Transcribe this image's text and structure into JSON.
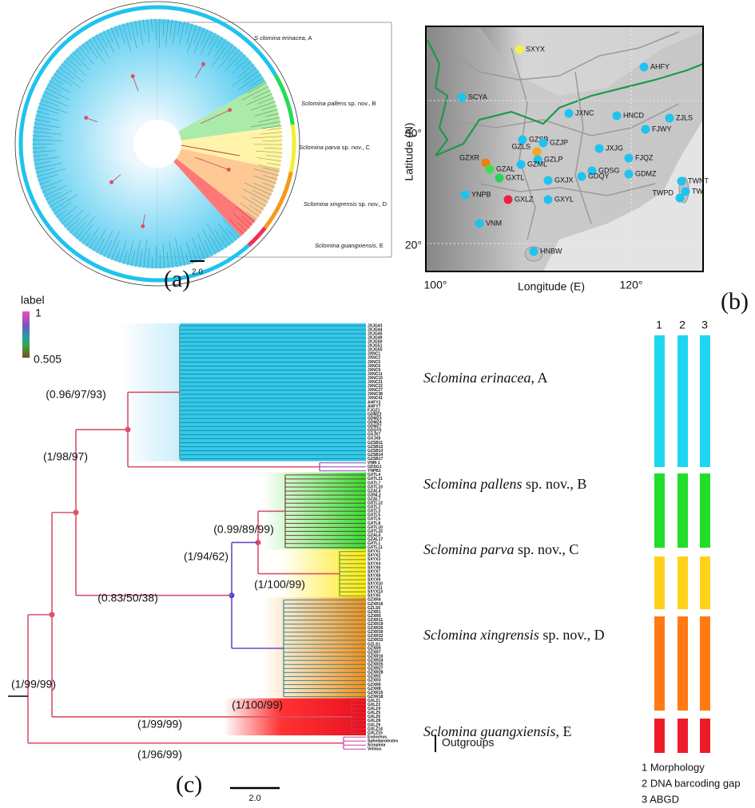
{
  "panel_a": {
    "label": "(a)",
    "scale": "2.0",
    "clades": [
      {
        "name": "S clomina erinacea",
        "suffix": ", A"
      },
      {
        "name": "Sclomina pallens",
        "suffix": " sp. nov., B"
      },
      {
        "name": "Sclomina parva",
        "suffix": " sp. nov., C"
      },
      {
        "name": "Sclomina xingrensis",
        "suffix": " sp. nov., D"
      },
      {
        "name": "Sclomina guangxiensis",
        "suffix": ", E"
      }
    ]
  },
  "panel_b": {
    "label": "(b)",
    "x_axis_label": "Longitude (E)",
    "y_axis_label": "Latitude (N)",
    "x_ticks": [
      "100°",
      "120°"
    ],
    "y_ticks": [
      "30°",
      "20°"
    ],
    "sites": [
      {
        "name": "SXYX",
        "color": "#f4f04a"
      },
      {
        "name": "AHFY",
        "color": "#1ec3ef"
      },
      {
        "name": "SCYA",
        "color": "#1ec3ef"
      },
      {
        "name": "JXNC",
        "color": "#1ec3ef"
      },
      {
        "name": "HNCD",
        "color": "#1ec3ef"
      },
      {
        "name": "ZJLS",
        "color": "#1ec3ef"
      },
      {
        "name": "FJWY",
        "color": "#1ec3ef"
      },
      {
        "name": "GZSB",
        "color": "#1ec3ef"
      },
      {
        "name": "GZJP",
        "color": "#1ec3ef"
      },
      {
        "name": "GZLS",
        "color": "#f5a623"
      },
      {
        "name": "GZLP",
        "color": "#1ec3ef"
      },
      {
        "name": "JXJG",
        "color": "#1ec3ef"
      },
      {
        "name": "GZXR",
        "color": "#f07c12"
      },
      {
        "name": "FJQZ",
        "color": "#1ec3ef"
      },
      {
        "name": "GZAL",
        "color": "#3fe04a"
      },
      {
        "name": "GZML",
        "color": "#1ec3ef"
      },
      {
        "name": "GXTL",
        "color": "#2bd058"
      },
      {
        "name": "GXJX",
        "color": "#1ec3ef"
      },
      {
        "name": "GDSG",
        "color": "#1ec3ef"
      },
      {
        "name": "GDQY",
        "color": "#1ec3ef"
      },
      {
        "name": "GDMZ",
        "color": "#1ec3ef"
      },
      {
        "name": "TWNT",
        "color": "#1ec3ef"
      },
      {
        "name": "TW",
        "color": "#1ec3ef"
      },
      {
        "name": "TWPD",
        "color": "#1ec3ef"
      },
      {
        "name": "YNPB",
        "color": "#1ec3ef"
      },
      {
        "name": "GXLZ",
        "color": "#f01e46"
      },
      {
        "name": "GXYL",
        "color": "#1ec3ef"
      },
      {
        "name": "VNM",
        "color": "#1ec3ef"
      },
      {
        "name": "HNBW",
        "color": "#1ec3ef"
      }
    ]
  },
  "panel_c": {
    "label": "(c)",
    "scale": "2.0",
    "legend": {
      "title": "label",
      "max": 1,
      "min": 0.505
    },
    "clades": [
      {
        "name": "Sclomina erinacea",
        "suffix": ", A"
      },
      {
        "name": "Sclomina pallens",
        "suffix": " sp. nov., B"
      },
      {
        "name": "Sclomina parva",
        "suffix": " sp. nov., C"
      },
      {
        "name": "Sclomina xingrensis",
        "suffix": " sp. nov., D"
      },
      {
        "name": "Sclomina guangxiensis",
        "suffix": ", E"
      }
    ],
    "outgroups": "Outgroups",
    "supports": [
      "(0.96/97/93)",
      "(1/98/97)",
      "(0.99/89/99)",
      "(1/94/62)",
      "(1/100/99)",
      "(0.83/50/38)",
      "(1/99/99)",
      "(1/100/99)",
      "(1/99/99)",
      "(1/96/99)"
    ],
    "tips": [
      "JXJG43",
      "JXJG44",
      "JXJG45",
      "JXJG49",
      "JXJG50",
      "JXJG51",
      "JXJG55",
      "JXNC1",
      "JXNC2",
      "JXNC5",
      "JXNC6",
      "JXNC9",
      "JXNC11",
      "JXNC15",
      "JXNC21",
      "JXNC22",
      "JXNC27",
      "JXNC38",
      "JXNC41",
      "AHFY2",
      "AHFY7",
      "FJQZ1",
      "GDMZ2",
      "GDMZ3",
      "GDMZ4",
      "GDMZ7",
      "GDQY5",
      "GXJX7",
      "GXJX8",
      "GZSB11",
      "GZSB12",
      "GZSB13",
      "GZSB14",
      "GZSB17",
      "VNM-1",
      "GDSG1",
      "YNPB1",
      "GXTL4",
      "GXTL21",
      "GXTL7",
      "GXTL23",
      "GZAL4",
      "GXNL2",
      "GZAL7",
      "GXTL12",
      "GXTL2",
      "GXTL3",
      "GXTL5",
      "GXTL6",
      "GXTL8",
      "GXTL10",
      "GXTL22",
      "GZAL6",
      "GZAL17",
      "GXTL1",
      "GXTL11",
      "SXYX1",
      "SXYX2",
      "SXYX3",
      "SXYX4",
      "SXYX6",
      "SXYX7",
      "SXYX8",
      "SXYX9",
      "SXYX10",
      "SXYX11",
      "SXYX13",
      "SXYX5",
      "GZXR4",
      "GZXR16",
      "GZLS6",
      "GZXR1",
      "GZXR5",
      "GZXR11",
      "GZXR19",
      "GZXR26",
      "GZXR30",
      "GZXR32",
      "GZXR33",
      "GZLS1",
      "GZXR9",
      "GZXR7",
      "GZXR10",
      "GZXR24",
      "GZXR25",
      "GZXR27",
      "GZXR28",
      "GZXR2",
      "GZXR3",
      "GZXR6",
      "GZXR8",
      "GZXR15",
      "GZXR18",
      "GXLZ1",
      "GXLZ2",
      "GXLZ4",
      "GXLZ5",
      "GXLZ6",
      "GXLZ8",
      "GXLZ9",
      "GXLZ14",
      "GXLZ15",
      "Endochus",
      "Sphedanolestes",
      "Sciopinia",
      "Velinus"
    ],
    "methods": {
      "headers": [
        "1",
        "2",
        "3"
      ],
      "items": [
        "1 Morphology",
        "2 DNA barcoding gap",
        "3 ABGD"
      ]
    }
  }
}
